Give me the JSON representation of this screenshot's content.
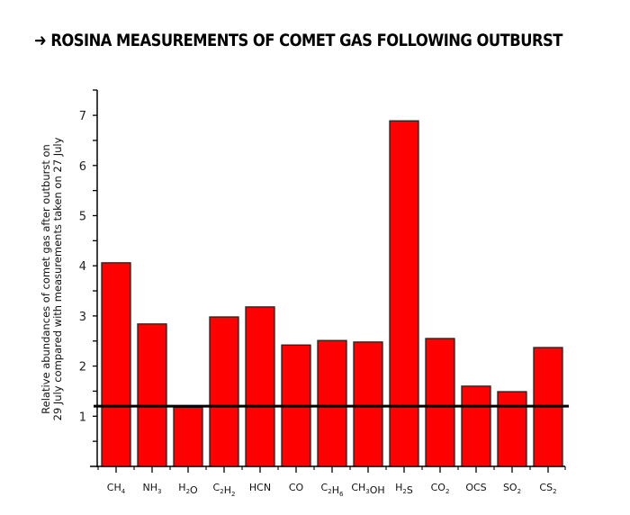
{
  "title": {
    "arrow": "➜",
    "text": "ROSINA MEASUREMENTS OF COMET GAS FOLLOWING OUTBURST"
  },
  "chart_data": {
    "type": "bar",
    "title": "ROSINA MEASUREMENTS OF COMET GAS FOLLOWING OUTBURST",
    "xlabel": "",
    "ylabel": "Relative abundances of comet gas after outburst on 29 July compared with measurements taken on 27 July",
    "ylabel_lines": [
      "Relative abundances of comet gas after outburst on",
      "29 July compared with measurements taken on 27 July"
    ],
    "categories": [
      "CH4",
      "NH3",
      "H2O",
      "C2H2",
      "HCN",
      "CO",
      "C2H6",
      "CH3OH",
      "H2S",
      "CO2",
      "OCS",
      "SO2",
      "CS2"
    ],
    "category_display": [
      {
        "base": "CH",
        "sub": "4",
        "tail": ""
      },
      {
        "base": "NH",
        "sub": "3",
        "tail": ""
      },
      {
        "base": "H",
        "sub": "2",
        "tail": "O"
      },
      {
        "base": "C",
        "sub": "2",
        "tail": "H",
        "sub2": "2"
      },
      {
        "base": "HCN",
        "sub": "",
        "tail": ""
      },
      {
        "base": "CO",
        "sub": "",
        "tail": ""
      },
      {
        "base": "C",
        "sub": "2",
        "tail": "H",
        "sub2": "6"
      },
      {
        "base": "CH",
        "sub": "3",
        "tail": "OH"
      },
      {
        "base": "H",
        "sub": "2",
        "tail": "S"
      },
      {
        "base": "CO",
        "sub": "2",
        "tail": ""
      },
      {
        "base": "OCS",
        "sub": "",
        "tail": ""
      },
      {
        "base": "SO",
        "sub": "2",
        "tail": ""
      },
      {
        "base": "CS",
        "sub": "2",
        "tail": ""
      }
    ],
    "values": [
      4.06,
      2.84,
      1.18,
      2.98,
      3.18,
      2.42,
      2.51,
      2.48,
      6.89,
      2.55,
      1.6,
      1.49,
      2.37
    ],
    "reference_line": 1.2,
    "ylim": [
      0,
      7.5
    ],
    "yticks": [
      1,
      2,
      3,
      4,
      5,
      6,
      7
    ],
    "grid": false,
    "legend": null,
    "bar_color": "#ff0000",
    "bar_edge_color": "#222222",
    "reference_line_color": "#000000"
  }
}
